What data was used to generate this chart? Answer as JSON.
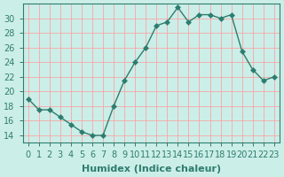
{
  "x": [
    0,
    1,
    2,
    3,
    4,
    5,
    6,
    7,
    8,
    9,
    10,
    11,
    12,
    13,
    14,
    15,
    16,
    17,
    18,
    19,
    20,
    21,
    22,
    23
  ],
  "y": [
    19,
    17.5,
    17.5,
    16.5,
    15.5,
    14.5,
    14,
    14,
    18,
    21.5,
    24,
    26,
    29,
    29.5,
    31.5,
    29.5,
    30.5,
    30.5,
    30,
    30.5,
    25.5,
    23,
    21.5,
    22
  ],
  "line_color": "#2e7d6e",
  "marker": "D",
  "marker_size": 3,
  "xlabel": "Humidex (Indice chaleur)",
  "xlim": [
    -0.5,
    23.5
  ],
  "ylim": [
    13,
    32
  ],
  "yticks": [
    14,
    16,
    18,
    20,
    22,
    24,
    26,
    28,
    30
  ],
  "xticks": [
    0,
    1,
    2,
    3,
    4,
    5,
    6,
    7,
    8,
    9,
    10,
    11,
    12,
    13,
    14,
    15,
    16,
    17,
    18,
    19,
    20,
    21,
    22,
    23
  ],
  "bg_color": "#cceee8",
  "grid_color": "#ff9999",
  "tick_color": "#2e7d6e",
  "label_color": "#2e7d6e",
  "axis_color": "#2e7d6e",
  "xlabel_fontsize": 8,
  "tick_fontsize": 7
}
